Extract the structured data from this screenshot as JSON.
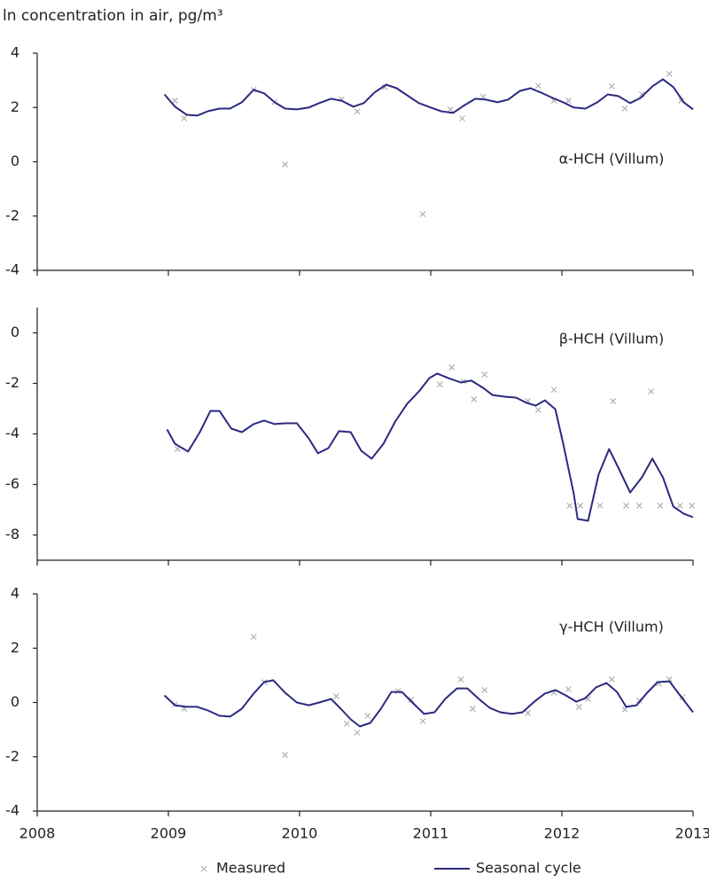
{
  "chart_data": [
    {
      "type": "line",
      "y_label": "ln concentration in air, pg/m³",
      "annotation": "α-HCH (Villum)",
      "xlim": [
        2008,
        2013
      ],
      "xticks": [
        2008,
        2009,
        2010,
        2011,
        2012,
        2013
      ],
      "ylim": [
        -4,
        4
      ],
      "yticks": [
        4,
        2,
        0,
        -2,
        -4
      ],
      "series": [
        {
          "type": "scatter",
          "color": "#b0b0b0",
          "x": [
            2009.05,
            2009.12,
            2009.65,
            2009.81,
            2009.89,
            2010.32,
            2010.44,
            2010.65,
            2010.94,
            2011.15,
            2011.24,
            2011.4,
            2011.82,
            2011.94,
            2012.05,
            2012.38,
            2012.48,
            2012.61,
            2012.82,
            2012.91
          ],
          "values": [
            2.25,
            1.6,
            2.65,
            2.2,
            -0.1,
            2.3,
            1.85,
            2.75,
            -1.93,
            1.93,
            1.6,
            2.4,
            2.8,
            2.25,
            2.25,
            2.78,
            1.96,
            2.48,
            3.24,
            2.25
          ]
        },
        {
          "type": "line",
          "color": "#2b2a80",
          "x": [
            2008.97,
            2009.05,
            2009.14,
            2009.22,
            2009.3,
            2009.39,
            2009.47,
            2009.56,
            2009.65,
            2009.73,
            2009.81,
            2009.89,
            2009.98,
            2010.07,
            2010.15,
            2010.24,
            2010.32,
            2010.41,
            2010.49,
            2010.57,
            2010.66,
            2010.74,
            2010.82,
            2010.91,
            2011.0,
            2011.08,
            2011.17,
            2011.25,
            2011.34,
            2011.42,
            2011.51,
            2011.59,
            2011.68,
            2011.76,
            2011.84,
            2011.93,
            2012.01,
            2012.09,
            2012.18,
            2012.27,
            2012.35,
            2012.43,
            2012.52,
            2012.6,
            2012.69,
            2012.77,
            2012.85,
            2012.93,
            2013.0
          ],
          "values": [
            2.48,
            2.03,
            1.73,
            1.7,
            1.86,
            1.96,
            1.96,
            2.19,
            2.65,
            2.52,
            2.19,
            1.96,
            1.93,
            2.0,
            2.16,
            2.32,
            2.25,
            2.03,
            2.16,
            2.55,
            2.84,
            2.71,
            2.45,
            2.16,
            2.0,
            1.86,
            1.8,
            2.06,
            2.32,
            2.29,
            2.19,
            2.29,
            2.61,
            2.71,
            2.55,
            2.35,
            2.19,
            2.0,
            1.96,
            2.19,
            2.48,
            2.42,
            2.16,
            2.35,
            2.78,
            3.04,
            2.75,
            2.19,
            1.93
          ]
        }
      ]
    },
    {
      "type": "line",
      "annotation": "β-HCH (Villum)",
      "xlim": [
        2008,
        2013
      ],
      "xticks": [
        2008,
        2009,
        2010,
        2011,
        2012,
        2013
      ],
      "ylim": [
        -9,
        1
      ],
      "yticks": [
        0,
        -2,
        -4,
        -6,
        -8
      ],
      "series": [
        {
          "type": "scatter",
          "color": "#b0b0b0",
          "x": [
            2009.07,
            2011.07,
            2011.16,
            2011.25,
            2011.33,
            2011.41,
            2011.74,
            2011.82,
            2011.94,
            2012.06,
            2012.14,
            2012.29,
            2012.39,
            2012.49,
            2012.59,
            2012.68,
            2012.75,
            2012.9,
            2012.99
          ],
          "values": [
            -4.6,
            -2.04,
            -1.37,
            -1.93,
            -2.63,
            -1.65,
            -2.7,
            -3.05,
            -2.25,
            -6.84,
            -6.84,
            -6.84,
            -2.7,
            -6.84,
            -6.84,
            -2.32,
            -6.84,
            -6.84,
            -6.84
          ]
        },
        {
          "type": "line",
          "color": "#2b2a80",
          "x": [
            2008.99,
            2009.05,
            2009.15,
            2009.24,
            2009.32,
            2009.39,
            2009.48,
            2009.56,
            2009.65,
            2009.73,
            2009.81,
            2009.89,
            2009.98,
            2010.07,
            2010.14,
            2010.22,
            2010.3,
            2010.39,
            2010.47,
            2010.55,
            2010.64,
            2010.73,
            2010.82,
            2010.91,
            2010.99,
            2011.05,
            2011.15,
            2011.23,
            2011.31,
            2011.4,
            2011.47,
            2011.57,
            2011.65,
            2011.73,
            2011.8,
            2011.87,
            2011.95,
            2012.01,
            2012.09,
            2012.12,
            2012.2,
            2012.28,
            2012.36,
            2012.44,
            2012.52,
            2012.61,
            2012.69,
            2012.77,
            2012.85,
            2012.93,
            2013.0
          ],
          "values": [
            -3.82,
            -4.39,
            -4.7,
            -3.93,
            -3.09,
            -3.09,
            -3.79,
            -3.93,
            -3.61,
            -3.47,
            -3.61,
            -3.58,
            -3.58,
            -4.18,
            -4.77,
            -4.56,
            -3.89,
            -3.93,
            -4.67,
            -4.98,
            -4.39,
            -3.51,
            -2.81,
            -2.32,
            -1.79,
            -1.61,
            -1.82,
            -1.96,
            -1.89,
            -2.18,
            -2.46,
            -2.53,
            -2.56,
            -2.77,
            -2.88,
            -2.67,
            -3.02,
            -4.39,
            -6.35,
            -7.37,
            -7.44,
            -5.61,
            -4.6,
            -5.44,
            -6.32,
            -5.72,
            -4.98,
            -5.72,
            -6.88,
            -7.16,
            -7.3
          ]
        }
      ]
    },
    {
      "type": "line",
      "annotation": "γ-HCH (Villum)",
      "xlim": [
        2008,
        2013
      ],
      "xticks": [
        2008,
        2009,
        2010,
        2011,
        2012,
        2013
      ],
      "ylim": [
        -4,
        4
      ],
      "yticks": [
        4,
        2,
        0,
        -2,
        -4
      ],
      "series": [
        {
          "name": "Measured",
          "type": "scatter",
          "color": "#b0b0b0",
          "x": [
            2009.05,
            2009.12,
            2009.65,
            2009.73,
            2009.89,
            2010.28,
            2010.36,
            2010.44,
            2010.52,
            2010.75,
            2010.85,
            2010.94,
            2011.23,
            2011.32,
            2011.41,
            2011.74,
            2011.94,
            2012.05,
            2012.13,
            2012.2,
            2012.38,
            2012.48,
            2012.59,
            2012.74,
            2012.82,
            2012.92
          ],
          "values": [
            -0.07,
            -0.23,
            2.42,
            0.75,
            -1.93,
            0.23,
            -0.78,
            -1.11,
            -0.49,
            0.42,
            0.1,
            -0.69,
            0.85,
            -0.23,
            0.46,
            -0.39,
            0.36,
            0.49,
            -0.16,
            0.13,
            0.85,
            -0.26,
            0.07,
            0.69,
            0.85,
            0.2
          ]
        },
        {
          "name": "Seasonal cycle",
          "type": "line",
          "color": "#2b2a80",
          "x": [
            2008.97,
            2009.05,
            2009.14,
            2009.22,
            2009.3,
            2009.39,
            2009.47,
            2009.56,
            2009.65,
            2009.73,
            2009.8,
            2009.89,
            2009.98,
            2010.07,
            2010.15,
            2010.24,
            2010.32,
            2010.39,
            2010.46,
            2010.54,
            2010.62,
            2010.7,
            2010.78,
            2010.86,
            2010.95,
            2011.03,
            2011.11,
            2011.2,
            2011.28,
            2011.36,
            2011.45,
            2011.53,
            2011.62,
            2011.7,
            2011.79,
            2011.87,
            2011.95,
            2012.03,
            2012.11,
            2012.18,
            2012.26,
            2012.34,
            2012.42,
            2012.49,
            2012.57,
            2012.65,
            2012.73,
            2012.82,
            2012.89,
            2013.0
          ],
          "values": [
            0.26,
            -0.1,
            -0.16,
            -0.16,
            -0.29,
            -0.49,
            -0.52,
            -0.23,
            0.33,
            0.75,
            0.82,
            0.36,
            0,
            -0.1,
            0,
            0.13,
            -0.26,
            -0.62,
            -0.88,
            -0.75,
            -0.23,
            0.39,
            0.39,
            0,
            -0.42,
            -0.36,
            0.13,
            0.52,
            0.52,
            0.16,
            -0.2,
            -0.36,
            -0.42,
            -0.36,
            0.03,
            0.33,
            0.46,
            0.26,
            0.03,
            0.16,
            0.56,
            0.72,
            0.39,
            -0.16,
            -0.1,
            0.36,
            0.75,
            0.78,
            0.33,
            -0.36
          ]
        }
      ]
    }
  ]
}
